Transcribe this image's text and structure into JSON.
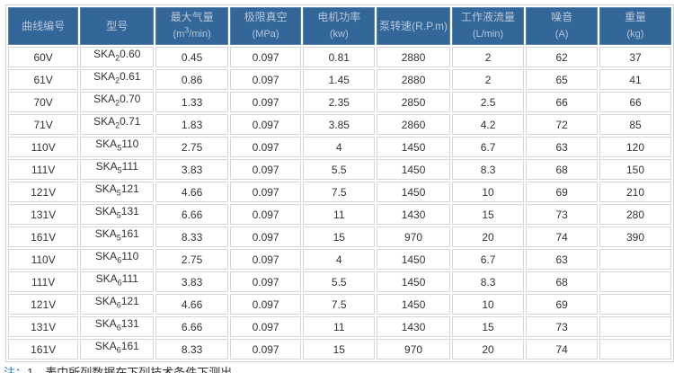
{
  "header": [
    {
      "title": "曲线编号",
      "unit": ""
    },
    {
      "title": "型号",
      "unit": ""
    },
    {
      "title": "最大气量",
      "unit": "(m3/min)"
    },
    {
      "title": "极限真空",
      "unit": "(MPa)"
    },
    {
      "title": "电机功率",
      "unit": "(kw)"
    },
    {
      "title": "泵转速(R.P.m)",
      "unit": ""
    },
    {
      "title": "工作液流量",
      "unit": "(L/min)"
    },
    {
      "title": "噪音",
      "unit": "(A)"
    },
    {
      "title": "重量",
      "unit": "(kg)"
    }
  ],
  "rows": [
    {
      "curve": "60V",
      "model_prefix": "SKA",
      "model_sub": "2",
      "model_suffix": "0.60",
      "flow": "0.45",
      "vacuum": "0.097",
      "power": "0.81",
      "speed": "2880",
      "liquid": "2",
      "noise": "62",
      "weight": "37"
    },
    {
      "curve": "61V",
      "model_prefix": "SKA",
      "model_sub": "2",
      "model_suffix": "0.61",
      "flow": "0.86",
      "vacuum": "0.097",
      "power": "1.45",
      "speed": "2880",
      "liquid": "2",
      "noise": "65",
      "weight": "41"
    },
    {
      "curve": "70V",
      "model_prefix": "SKA",
      "model_sub": "2",
      "model_suffix": "0.70",
      "flow": "1.33",
      "vacuum": "0.097",
      "power": "2.35",
      "speed": "2850",
      "liquid": "2.5",
      "noise": "66",
      "weight": "66"
    },
    {
      "curve": "71V",
      "model_prefix": "SKA",
      "model_sub": "2",
      "model_suffix": "0.71",
      "flow": "1.83",
      "vacuum": "0.097",
      "power": "3.85",
      "speed": "2860",
      "liquid": "4.2",
      "noise": "72",
      "weight": "85"
    },
    {
      "curve": "110V",
      "model_prefix": "SKA",
      "model_sub": "5",
      "model_suffix": "110",
      "flow": "2.75",
      "vacuum": "0.097",
      "power": "4",
      "speed": "1450",
      "liquid": "6.7",
      "noise": "63",
      "weight": "120"
    },
    {
      "curve": "111V",
      "model_prefix": "SKA",
      "model_sub": "5",
      "model_suffix": "111",
      "flow": "3.83",
      "vacuum": "0.097",
      "power": "5.5",
      "speed": "1450",
      "liquid": "8.3",
      "noise": "68",
      "weight": "150"
    },
    {
      "curve": "121V",
      "model_prefix": "SKA",
      "model_sub": "5",
      "model_suffix": "121",
      "flow": "4.66",
      "vacuum": "0.097",
      "power": "7.5",
      "speed": "1450",
      "liquid": "10",
      "noise": "69",
      "weight": "210"
    },
    {
      "curve": "131V",
      "model_prefix": "SKA",
      "model_sub": "5",
      "model_suffix": "131",
      "flow": "6.66",
      "vacuum": "0.097",
      "power": "11",
      "speed": "1430",
      "liquid": "15",
      "noise": "73",
      "weight": "280"
    },
    {
      "curve": "161V",
      "model_prefix": "SKA",
      "model_sub": "5",
      "model_suffix": "161",
      "flow": "8.33",
      "vacuum": "0.097",
      "power": "15",
      "speed": "970",
      "liquid": "20",
      "noise": "74",
      "weight": "390"
    },
    {
      "curve": "110V",
      "model_prefix": "SKA",
      "model_sub": "6",
      "model_suffix": "110",
      "flow": "2.75",
      "vacuum": "0.097",
      "power": "4",
      "speed": "1450",
      "liquid": "6.7",
      "noise": "63",
      "weight": ""
    },
    {
      "curve": "111V",
      "model_prefix": "SKA",
      "model_sub": "6",
      "model_suffix": "111",
      "flow": "3.83",
      "vacuum": "0.097",
      "power": "5.5",
      "speed": "1450",
      "liquid": "8.3",
      "noise": "68",
      "weight": ""
    },
    {
      "curve": "121V",
      "model_prefix": "SKA",
      "model_sub": "6",
      "model_suffix": "121",
      "flow": "4.66",
      "vacuum": "0.097",
      "power": "7.5",
      "speed": "1450",
      "liquid": "10",
      "noise": "69",
      "weight": ""
    },
    {
      "curve": "131V",
      "model_prefix": "SKA",
      "model_sub": "6",
      "model_suffix": "131",
      "flow": "6.66",
      "vacuum": "0.097",
      "power": "11",
      "speed": "1430",
      "liquid": "15",
      "noise": "73",
      "weight": ""
    },
    {
      "curve": "161V",
      "model_prefix": "SKA",
      "model_sub": "6",
      "model_suffix": "161",
      "flow": "8.33",
      "vacuum": "0.097",
      "power": "15",
      "speed": "970",
      "liquid": "20",
      "noise": "74",
      "weight": ""
    }
  ],
  "note": {
    "mark": "注：",
    "text": "1、表中所列数据在下列技术条件下测出"
  },
  "colors": {
    "header_bg": "#336699",
    "header_text": "#b8c7d8",
    "border": "#d6d6d6"
  }
}
